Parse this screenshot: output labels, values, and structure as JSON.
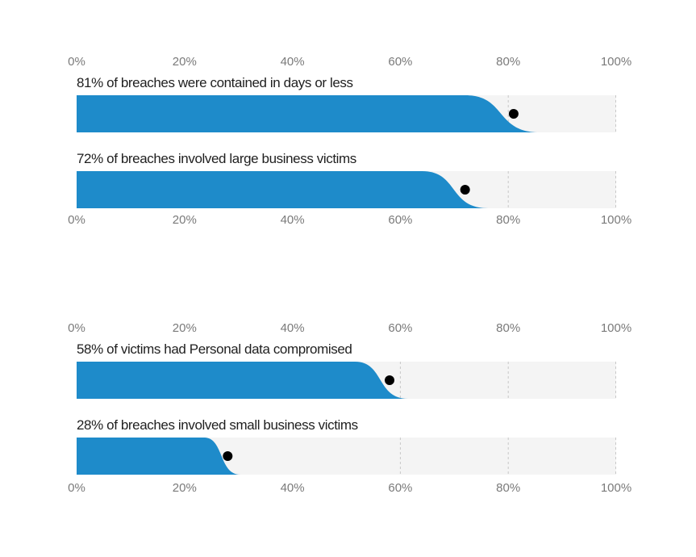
{
  "chart_data": {
    "type": "bar",
    "xlim": [
      0,
      100
    ],
    "tick_labels": [
      "0%",
      "20%",
      "40%",
      "60%",
      "80%",
      "100%"
    ],
    "grid": "vertical dashed at 60%, 80%, 100%",
    "colors": {
      "fill": "#1e8bca",
      "track": "#f4f4f4",
      "marker": "#000000",
      "grid": "#c8c8c8"
    },
    "groups": [
      {
        "bars": [
          {
            "label": "81% of breaches were contained in days or less",
            "value": 81
          },
          {
            "label": "72% of breaches involved large business victims",
            "value": 72
          }
        ]
      },
      {
        "bars": [
          {
            "label": "58% of victims had Personal data compromised",
            "value": 58
          },
          {
            "label": "28% of breaches involved small business victims",
            "value": 28
          }
        ]
      }
    ]
  }
}
